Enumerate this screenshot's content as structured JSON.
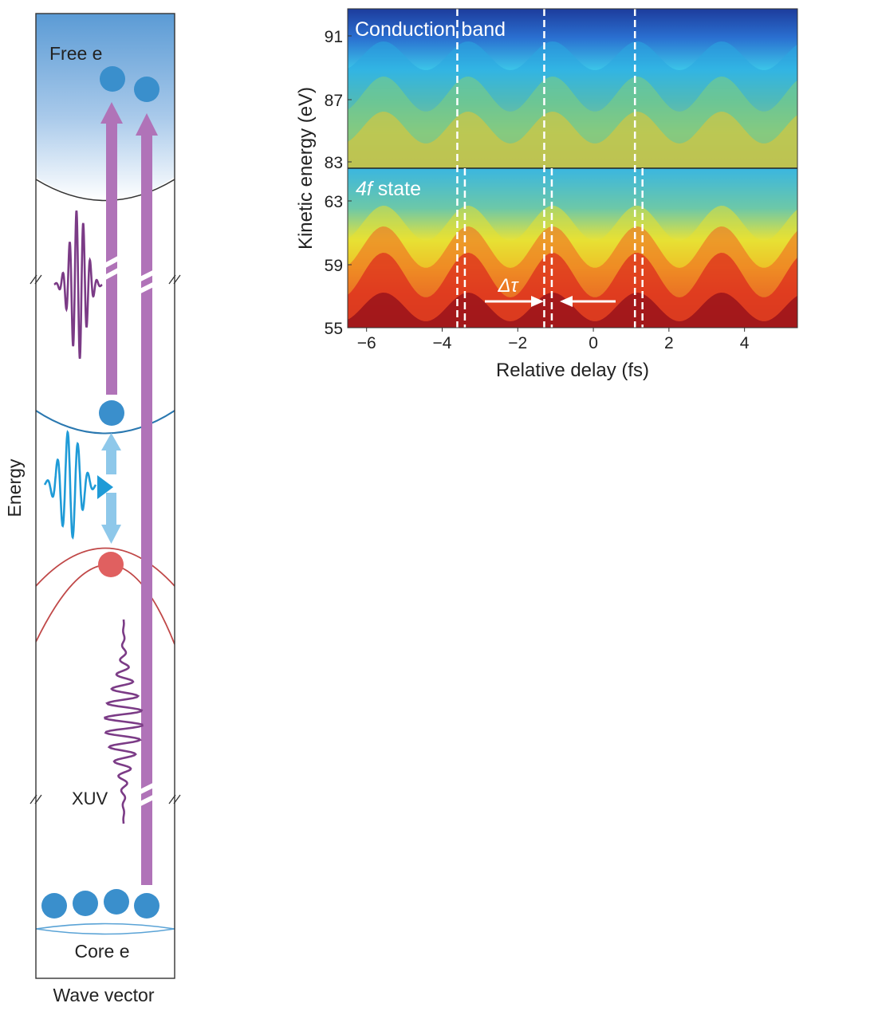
{
  "left_panel": {
    "y_axis_label": "Energy",
    "x_axis_label": "Wave vector",
    "free_electrons_label": "Free e",
    "core_electrons_label": "Core e",
    "xuv_label": "XUV",
    "colors": {
      "vacuum_gradient_top": "#5b9bd5",
      "vacuum_gradient_bottom": "#ffffff",
      "xuv_arrow": "#b073b8",
      "xuv_pulse": "#7b3b86",
      "ir_pulse": "#1f9bd7",
      "ir_arrow": "#8ec8ea",
      "electron": "#3a8fcc",
      "hole": "#e06060",
      "conduction_band": "#2a78b0",
      "valence_band": "#c04848",
      "core_band": "#5aa3d6"
    }
  },
  "right_panel": {
    "ylabel": "Kinetic energy (eV)",
    "xlabel": "Relative delay (fs)",
    "upper_label": "Conduction band",
    "lower_label_italic": "4f",
    "lower_label_rest": " state",
    "delta_label": "Δτ",
    "y_ticks_upper": [
      "91",
      "87",
      "83"
    ],
    "y_ticks_lower": [
      "63",
      "59",
      "55"
    ],
    "x_ticks": [
      "−6",
      "−4",
      "−2",
      "0",
      "2",
      "4"
    ],
    "x_tick_values": [
      -6,
      -4,
      -2,
      0,
      2,
      4
    ],
    "xlim": [
      -6.5,
      5.4
    ],
    "dashed_lines_upper_fs": [
      -3.6,
      -1.3,
      1.1
    ],
    "dashed_lines_lower_fs": [
      -3.4,
      -1.1,
      1.3
    ],
    "colors": {
      "high": "#8b0a1a",
      "low": "#1e3a9e"
    }
  }
}
